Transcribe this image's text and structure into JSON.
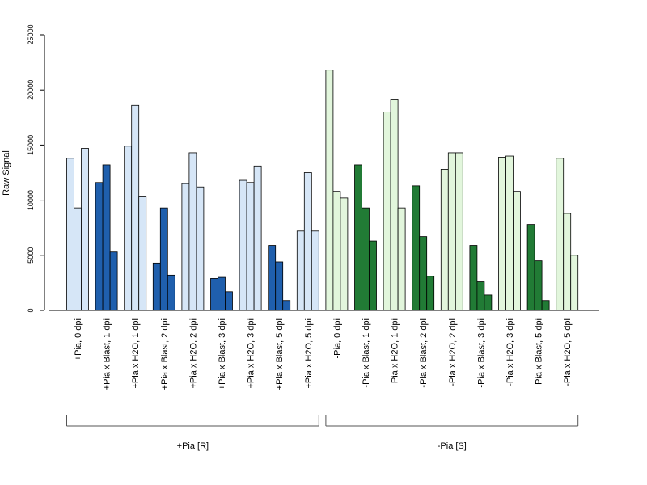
{
  "chart_data": {
    "type": "bar",
    "title": "",
    "xlabel": "",
    "ylabel": "Raw Signal",
    "ylim": [
      0,
      25000
    ],
    "yticks": [
      0,
      5000,
      10000,
      15000,
      20000,
      25000
    ],
    "grid": false,
    "legend": "none",
    "bars_per_category": 3,
    "categories": [
      "+Pia, 0 dpi",
      "+Pia x Blast, 1 dpi",
      "+Pia x H2O, 1 dpi",
      "+Pia x Blast, 2 dpi",
      "+Pia x H2O, 2 dpi",
      "+Pia x Blast, 3 dpi",
      "+Pia x H2O, 3 dpi",
      "+Pia x Blast, 5 dpi",
      "+Pia x H2O, 5 dpi",
      "-Pia, 0 dpi",
      "-Pia x Blast, 1 dpi",
      "-Pia x H2O, 1 dpi",
      "-Pia x Blast, 2 dpi",
      "-Pia x H2O, 2 dpi",
      "-Pia x Blast, 3 dpi",
      "-Pia x H2O, 3 dpi",
      "-Pia x Blast, 5 dpi",
      "-Pia x H2O, 5 dpi"
    ],
    "values": [
      [
        13800,
        9300,
        14700
      ],
      [
        11600,
        13200,
        5300
      ],
      [
        14900,
        18600,
        10300
      ],
      [
        4300,
        9300,
        3200
      ],
      [
        11500,
        14300,
        11200
      ],
      [
        2900,
        3000,
        1700
      ],
      [
        11800,
        11600,
        13100
      ],
      [
        5900,
        4400,
        900
      ],
      [
        7200,
        12500,
        7200
      ],
      [
        21800,
        10800,
        10200
      ],
      [
        13200,
        9300,
        6300
      ],
      [
        18000,
        19100,
        9300
      ],
      [
        11300,
        6700,
        3100
      ],
      [
        12800,
        14300,
        14300
      ],
      [
        5900,
        2600,
        1400
      ],
      [
        13900,
        14000,
        10800
      ],
      [
        7800,
        4500,
        900
      ],
      [
        13800,
        8800,
        5000
      ]
    ],
    "colors": [
      "#d6e6f7",
      "#1f5fad",
      "#e2f6dc",
      "#217b35"
    ],
    "groups": [
      {
        "label": "+Pia [R]",
        "from": 0,
        "to": 8
      },
      {
        "label": "-Pia [S]",
        "from": 9,
        "to": 17
      }
    ]
  }
}
